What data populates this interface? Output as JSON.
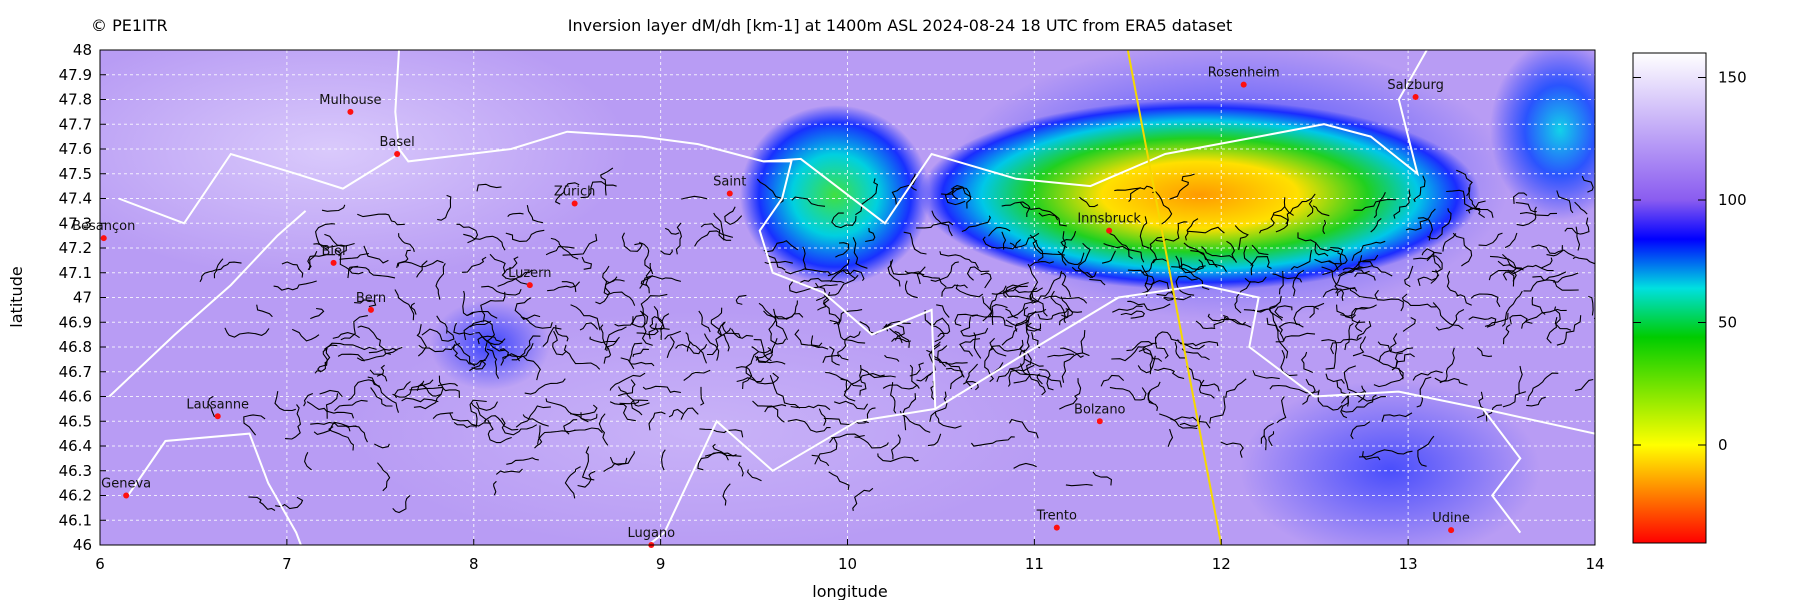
{
  "header": {
    "copyright": "© PE1ITR",
    "title": "Inversion layer dM/dh [km-1] at 1400m ASL 2024-08-24 18 UTC from ERA5 dataset"
  },
  "axes": {
    "xlabel": "longitude",
    "ylabel": "latitude",
    "x_ticks": [
      "6",
      "7",
      "8",
      "9",
      "10",
      "11",
      "12",
      "13",
      "14"
    ],
    "y_ticks": [
      "46",
      "46.1",
      "46.2",
      "46.3",
      "46.4",
      "46.5",
      "46.6",
      "46.7",
      "46.8",
      "46.9",
      "47",
      "47.1",
      "47.2",
      "47.3",
      "47.4",
      "47.5",
      "47.6",
      "47.7",
      "47.8",
      "47.9",
      "48"
    ]
  },
  "colorbar": {
    "ticks": [
      "0",
      "50",
      "100",
      "150"
    ],
    "range": [
      -40,
      160
    ],
    "colors": [
      "#ff0000",
      "#ff8000",
      "#ffff00",
      "#00cc00",
      "#00e0e0",
      "#0000ff",
      "#8a5cf0",
      "#ffffff"
    ]
  },
  "cities": [
    {
      "name": "Mulhouse",
      "lon": 7.34,
      "lat": 47.75
    },
    {
      "name": "Basel",
      "lon": 7.59,
      "lat": 47.58
    },
    {
      "name": "Zürich",
      "lon": 8.54,
      "lat": 47.38
    },
    {
      "name": "Saint",
      "lon": 9.37,
      "lat": 47.42
    },
    {
      "name": "Besançon",
      "lon": 6.02,
      "lat": 47.24
    },
    {
      "name": "Biel",
      "lon": 7.25,
      "lat": 47.14
    },
    {
      "name": "Luzern",
      "lon": 8.3,
      "lat": 47.05
    },
    {
      "name": "Bern",
      "lon": 7.45,
      "lat": 46.95
    },
    {
      "name": "Lausanne",
      "lon": 6.63,
      "lat": 46.52
    },
    {
      "name": "Geneva",
      "lon": 6.14,
      "lat": 46.2
    },
    {
      "name": "Lugano",
      "lon": 8.95,
      "lat": 46.0
    },
    {
      "name": "Trento",
      "lon": 11.12,
      "lat": 46.07
    },
    {
      "name": "Bolzano",
      "lon": 11.35,
      "lat": 46.5
    },
    {
      "name": "Innsbruck",
      "lon": 11.4,
      "lat": 47.27
    },
    {
      "name": "Rosenheim",
      "lon": 12.12,
      "lat": 47.86
    },
    {
      "name": "Salzburg",
      "lon": 13.04,
      "lat": 47.81
    },
    {
      "name": "Udine",
      "lon": 13.23,
      "lat": 46.06
    }
  ],
  "cross_section_line": {
    "from": [
      11.5,
      48.0
    ],
    "to": [
      12.0,
      46.0
    ],
    "color": "#f5d800"
  }
}
